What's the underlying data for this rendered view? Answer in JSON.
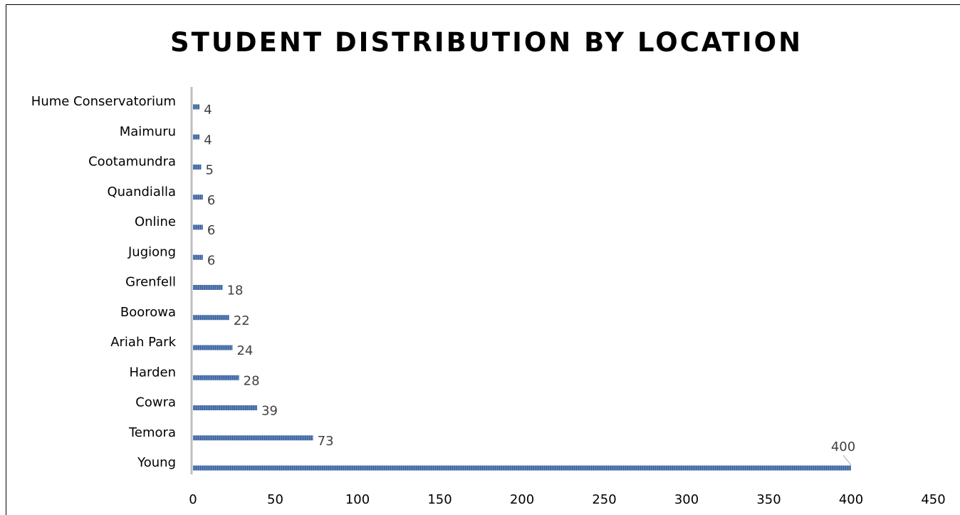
{
  "chart_data": {
    "type": "bar",
    "orientation": "horizontal",
    "title": "STUDENT DISTRIBUTION BY LOCATION",
    "categories": [
      "Hume Conservatorium",
      "Maimuru",
      "Cootamundra",
      "Quandialla",
      "Online",
      "Jugiong",
      "Grenfell",
      "Boorowa",
      "Ariah Park",
      "Harden",
      "Cowra",
      "Temora",
      "Young"
    ],
    "values": [
      4,
      4,
      5,
      6,
      6,
      6,
      18,
      22,
      24,
      28,
      39,
      73,
      400
    ],
    "xlim": [
      0,
      450
    ],
    "x_ticks": [
      "0",
      "50",
      "100",
      "150",
      "200",
      "250",
      "300",
      "350",
      "400",
      "450"
    ],
    "data_labels": [
      "4",
      "4",
      "5",
      "6",
      "6",
      "6",
      "18",
      "22",
      "24",
      "28",
      "39",
      "73",
      "400"
    ],
    "bar_color": "#4a6fa5",
    "axis_color": "#bfbfbf",
    "grid": false,
    "legend": "none"
  }
}
